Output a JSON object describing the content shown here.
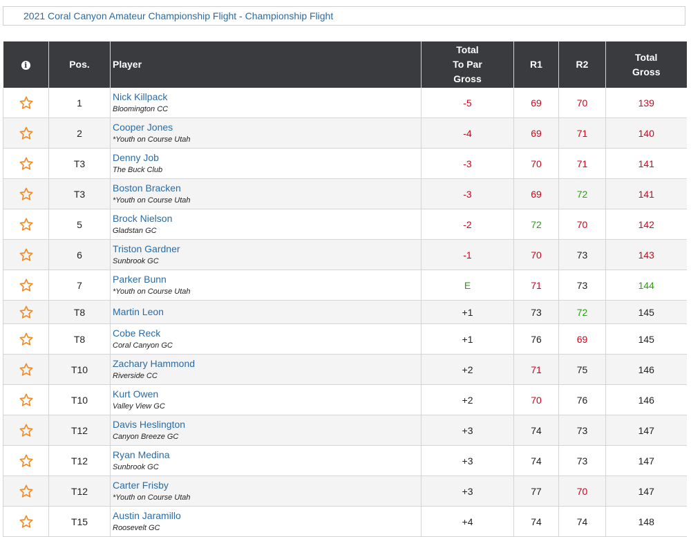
{
  "header": {
    "title": "2021 Coral Canyon Amateur Championship Flight - Championship Flight"
  },
  "columns": {
    "info_icon": "info-circle-icon",
    "pos": "Pos.",
    "player": "Player",
    "to_par_line1": "Total",
    "to_par_line2": "To Par",
    "to_par_line3": "Gross",
    "r1": "R1",
    "r2": "R2",
    "total_line1": "Total",
    "total_line2": "Gross"
  },
  "colors": {
    "under": "#d0021b",
    "even": "#2a9d12",
    "over": "#222222",
    "link": "#2b6ba3",
    "star": "#f08a24",
    "header_bg": "#3a3b3f"
  },
  "rows": [
    {
      "pos": "1",
      "name": "Nick Killpack",
      "club": "Bloomington CC",
      "to_par": "-5",
      "r1": "69",
      "r2": "70",
      "total": "139",
      "c_par": "red",
      "c_r1": "red",
      "c_r2": "red",
      "c_tot": "red"
    },
    {
      "pos": "2",
      "name": "Cooper Jones",
      "club": "*Youth on Course Utah",
      "to_par": "-4",
      "r1": "69",
      "r2": "71",
      "total": "140",
      "c_par": "red",
      "c_r1": "red",
      "c_r2": "red",
      "c_tot": "red"
    },
    {
      "pos": "T3",
      "name": "Denny Job",
      "club": "The Buck Club",
      "to_par": "-3",
      "r1": "70",
      "r2": "71",
      "total": "141",
      "c_par": "red",
      "c_r1": "red",
      "c_r2": "red",
      "c_tot": "red"
    },
    {
      "pos": "T3",
      "name": "Boston Bracken",
      "club": "*Youth on Course Utah",
      "to_par": "-3",
      "r1": "69",
      "r2": "72",
      "total": "141",
      "c_par": "red",
      "c_r1": "red",
      "c_r2": "green",
      "c_tot": "red"
    },
    {
      "pos": "5",
      "name": "Brock Nielson",
      "club": "Gladstan GC",
      "to_par": "-2",
      "r1": "72",
      "r2": "70",
      "total": "142",
      "c_par": "red",
      "c_r1": "green",
      "c_r2": "red",
      "c_tot": "red"
    },
    {
      "pos": "6",
      "name": "Triston Gardner",
      "club": "Sunbrook GC",
      "to_par": "-1",
      "r1": "70",
      "r2": "73",
      "total": "143",
      "c_par": "red",
      "c_r1": "red",
      "c_r2": "dark",
      "c_tot": "red"
    },
    {
      "pos": "7",
      "name": "Parker Bunn",
      "club": "*Youth on Course Utah",
      "to_par": "E",
      "r1": "71",
      "r2": "73",
      "total": "144",
      "c_par": "green",
      "c_r1": "red",
      "c_r2": "dark",
      "c_tot": "green"
    },
    {
      "pos": "T8",
      "name": "Martin Leon",
      "club": "",
      "to_par": "+1",
      "r1": "73",
      "r2": "72",
      "total": "145",
      "c_par": "dark",
      "c_r1": "dark",
      "c_r2": "green",
      "c_tot": "dark"
    },
    {
      "pos": "T8",
      "name": "Cobe Reck",
      "club": "Coral Canyon GC",
      "to_par": "+1",
      "r1": "76",
      "r2": "69",
      "total": "145",
      "c_par": "dark",
      "c_r1": "dark",
      "c_r2": "red",
      "c_tot": "dark"
    },
    {
      "pos": "T10",
      "name": "Zachary Hammond",
      "club": "Riverside CC",
      "to_par": "+2",
      "r1": "71",
      "r2": "75",
      "total": "146",
      "c_par": "dark",
      "c_r1": "red",
      "c_r2": "dark",
      "c_tot": "dark"
    },
    {
      "pos": "T10",
      "name": "Kurt Owen",
      "club": "Valley View GC",
      "to_par": "+2",
      "r1": "70",
      "r2": "76",
      "total": "146",
      "c_par": "dark",
      "c_r1": "red",
      "c_r2": "dark",
      "c_tot": "dark"
    },
    {
      "pos": "T12",
      "name": "Davis Heslington",
      "club": "Canyon Breeze GC",
      "to_par": "+3",
      "r1": "74",
      "r2": "73",
      "total": "147",
      "c_par": "dark",
      "c_r1": "dark",
      "c_r2": "dark",
      "c_tot": "dark"
    },
    {
      "pos": "T12",
      "name": "Ryan Medina",
      "club": "Sunbrook GC",
      "to_par": "+3",
      "r1": "74",
      "r2": "73",
      "total": "147",
      "c_par": "dark",
      "c_r1": "dark",
      "c_r2": "dark",
      "c_tot": "dark"
    },
    {
      "pos": "T12",
      "name": "Carter Frisby",
      "club": "*Youth on Course Utah",
      "to_par": "+3",
      "r1": "77",
      "r2": "70",
      "total": "147",
      "c_par": "dark",
      "c_r1": "dark",
      "c_r2": "red",
      "c_tot": "dark"
    },
    {
      "pos": "T15",
      "name": "Austin Jaramillo",
      "club": "Roosevelt GC",
      "to_par": "+4",
      "r1": "74",
      "r2": "74",
      "total": "148",
      "c_par": "dark",
      "c_r1": "dark",
      "c_r2": "dark",
      "c_tot": "dark"
    }
  ]
}
